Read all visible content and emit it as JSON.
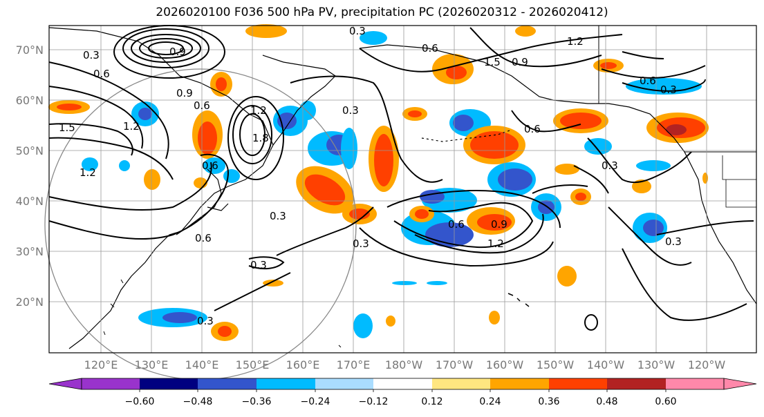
{
  "title": "2026020100 F036 500 hPa PV, precipitation PC (2026020312 - 2026020412)",
  "lat_labels": [
    "70°N",
    "60°N",
    "50°N",
    "40°N",
    "30°N",
    "20°N"
  ],
  "lon_labels": [
    "120°E",
    "130°E",
    "140°E",
    "150°E",
    "160°E",
    "170°E",
    "180°W",
    "170°W",
    "160°W",
    "150°W",
    "140°W",
    "130°W",
    "120°W"
  ],
  "pv_contour_labels": [
    "0.3",
    "0.6",
    "0.9",
    "1.2",
    "1.5",
    "0.3",
    "0.9",
    "0.6",
    "1.2",
    "0.3",
    "0.6",
    "0.3",
    "0.3",
    "0.6",
    "0.9",
    "1.2",
    "0.6",
    "0.3",
    "0.3",
    "0.3",
    "0.3",
    "0.3",
    "1.5",
    "1.2",
    "1.8",
    "0.6",
    "0.6",
    "0.9",
    "0.6",
    "1.2"
  ],
  "colorbar": {
    "ticks": [
      "−0.60",
      "−0.48",
      "−0.36",
      "−0.24",
      "−0.12",
      "0.12",
      "0.24",
      "0.36",
      "0.48",
      "0.60"
    ],
    "colors": [
      "#9933cc",
      "#000080",
      "#3355cc",
      "#00bbff",
      "#aaddff",
      "#ffffff",
      "#ffe680",
      "#ffa500",
      "#ff4000",
      "#b22222",
      "#ff88aa"
    ]
  },
  "colors": {
    "neg_strong": "#3355cc",
    "neg_mid": "#00bbff",
    "neg_weak": "#aaddff",
    "pos_weak": "#ffe680",
    "pos_mid": "#ffa500",
    "pos_strong": "#ff4000",
    "pos_max": "#b22222"
  }
}
